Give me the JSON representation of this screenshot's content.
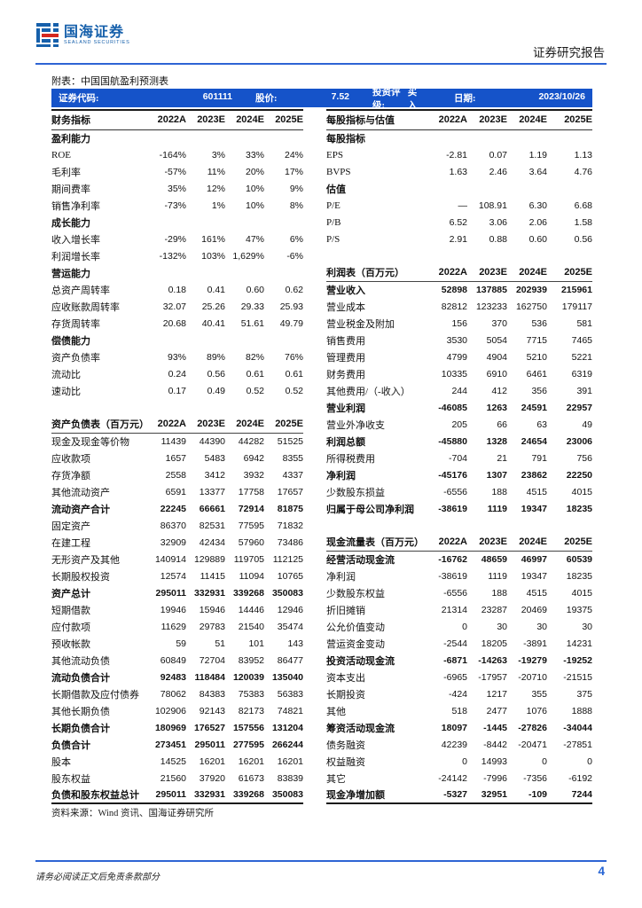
{
  "colors": {
    "info_bar_blue": "#1553c9",
    "rule_blue": "#2e64d4",
    "logo_blue": "#1660ab",
    "logo_red": "#d5281e",
    "page_number_blue": "#2563d4"
  },
  "header": {
    "brand_cn": "国海证券",
    "brand_en": "SEALAND SECURITIES",
    "report_type": "证券研究报告"
  },
  "caption": "附表：中国国航盈利预测表",
  "info_bar": {
    "code_label": "证券代码:",
    "code": "601111",
    "price_label": "股价:",
    "price": "7.52",
    "rating_label": "投资评级:",
    "rating": "买入",
    "date_label": "日期:",
    "date": "2023/10/26"
  },
  "left_table": {
    "header": [
      "财务指标",
      "2022A",
      "2023E",
      "2024E",
      "2025E"
    ],
    "rows": [
      {
        "label": "盈利能力",
        "style": "section"
      },
      {
        "label": "ROE",
        "values": [
          "-164%",
          "3%",
          "33%",
          "24%"
        ]
      },
      {
        "label": "毛利率",
        "values": [
          "-57%",
          "11%",
          "20%",
          "17%"
        ]
      },
      {
        "label": "期间费率",
        "values": [
          "35%",
          "12%",
          "10%",
          "9%"
        ]
      },
      {
        "label": "销售净利率",
        "values": [
          "-73%",
          "1%",
          "10%",
          "8%"
        ]
      },
      {
        "label": "成长能力",
        "style": "section"
      },
      {
        "label": "收入增长率",
        "values": [
          "-29%",
          "161%",
          "47%",
          "6%"
        ]
      },
      {
        "label": "利润增长率",
        "values": [
          "-132%",
          "103%",
          "1,629%",
          "-6%"
        ]
      },
      {
        "label": "营运能力",
        "style": "section"
      },
      {
        "label": "总资产周转率",
        "values": [
          "0.18",
          "0.41",
          "0.60",
          "0.62"
        ]
      },
      {
        "label": "应收账款周转率",
        "values": [
          "32.07",
          "25.26",
          "29.33",
          "25.93"
        ]
      },
      {
        "label": "存货周转率",
        "values": [
          "20.68",
          "40.41",
          "51.61",
          "49.79"
        ]
      },
      {
        "label": "偿债能力",
        "style": "section"
      },
      {
        "label": "资产负债率",
        "values": [
          "93%",
          "89%",
          "82%",
          "76%"
        ]
      },
      {
        "label": "流动比",
        "values": [
          "0.24",
          "0.56",
          "0.61",
          "0.61"
        ]
      },
      {
        "label": "速动比",
        "values": [
          "0.17",
          "0.49",
          "0.52",
          "0.52"
        ]
      },
      {
        "style": "blank"
      },
      {
        "label": "资产负债表（百万元）",
        "values": [
          "2022A",
          "2023E",
          "2024E",
          "2025E"
        ],
        "style": "header"
      },
      {
        "label": "现金及现金等价物",
        "values": [
          "11439",
          "44390",
          "44282",
          "51525"
        ]
      },
      {
        "label": "应收款项",
        "values": [
          "1657",
          "5483",
          "6942",
          "8355"
        ]
      },
      {
        "label": "存货净额",
        "values": [
          "2558",
          "3412",
          "3932",
          "4337"
        ]
      },
      {
        "label": "其他流动资产",
        "values": [
          "6591",
          "13377",
          "17758",
          "17657"
        ]
      },
      {
        "label": "流动资产合计",
        "values": [
          "22245",
          "66661",
          "72914",
          "81875"
        ],
        "style": "total"
      },
      {
        "label": "固定资产",
        "values": [
          "86370",
          "82531",
          "77595",
          "71832"
        ]
      },
      {
        "label": "在建工程",
        "values": [
          "32909",
          "42434",
          "57960",
          "73486"
        ]
      },
      {
        "label": "无形资产及其他",
        "values": [
          "140914",
          "129889",
          "119705",
          "112125"
        ]
      },
      {
        "label": "长期股权投资",
        "values": [
          "12574",
          "11415",
          "11094",
          "10765"
        ]
      },
      {
        "label": "资产总计",
        "values": [
          "295011",
          "332931",
          "339268",
          "350083"
        ],
        "style": "total"
      },
      {
        "label": "短期借款",
        "values": [
          "19946",
          "15946",
          "14446",
          "12946"
        ]
      },
      {
        "label": "应付款项",
        "values": [
          "11629",
          "29783",
          "21540",
          "35474"
        ]
      },
      {
        "label": "预收帐款",
        "values": [
          "59",
          "51",
          "101",
          "143"
        ]
      },
      {
        "label": "其他流动负债",
        "values": [
          "60849",
          "72704",
          "83952",
          "86477"
        ]
      },
      {
        "label": "流动负债合计",
        "values": [
          "92483",
          "118484",
          "120039",
          "135040"
        ],
        "style": "total"
      },
      {
        "label": "长期借款及应付债券",
        "values": [
          "78062",
          "84383",
          "75383",
          "56383"
        ]
      },
      {
        "label": "其他长期负债",
        "values": [
          "102906",
          "92143",
          "82173",
          "74821"
        ]
      },
      {
        "label": "长期负债合计",
        "values": [
          "180969",
          "176527",
          "157556",
          "131204"
        ],
        "style": "total"
      },
      {
        "label": "负债合计",
        "values": [
          "273451",
          "295011",
          "277595",
          "266244"
        ],
        "style": "total"
      },
      {
        "label": "股本",
        "values": [
          "14525",
          "16201",
          "16201",
          "16201"
        ]
      },
      {
        "label": "股东权益",
        "values": [
          "21560",
          "37920",
          "61673",
          "83839"
        ]
      },
      {
        "label": "负债和股东权益总计",
        "values": [
          "295011",
          "332931",
          "339268",
          "350083"
        ],
        "style": "total"
      }
    ]
  },
  "right_table": {
    "header": [
      "每股指标与估值",
      "2022A",
      "2023E",
      "2024E",
      "2025E"
    ],
    "rows": [
      {
        "label": "每股指标",
        "style": "section"
      },
      {
        "label": "EPS",
        "values": [
          "-2.81",
          "0.07",
          "1.19",
          "1.13"
        ]
      },
      {
        "label": "BVPS",
        "values": [
          "1.63",
          "2.46",
          "3.64",
          "4.76"
        ]
      },
      {
        "label": "估值",
        "style": "section"
      },
      {
        "label": "P/E",
        "values": [
          "—",
          "108.91",
          "6.30",
          "6.68"
        ]
      },
      {
        "label": "P/B",
        "values": [
          "6.52",
          "3.06",
          "2.06",
          "1.58"
        ]
      },
      {
        "label": "P/S",
        "values": [
          "2.91",
          "0.88",
          "0.60",
          "0.56"
        ]
      },
      {
        "style": "blank"
      },
      {
        "label": "利润表（百万元）",
        "values": [
          "2022A",
          "2023E",
          "2024E",
          "2025E"
        ],
        "style": "header"
      },
      {
        "label": "营业收入",
        "values": [
          "52898",
          "137885",
          "202939",
          "215961"
        ],
        "style": "total"
      },
      {
        "label": "营业成本",
        "values": [
          "82812",
          "123233",
          "162750",
          "179117"
        ]
      },
      {
        "label": "营业税金及附加",
        "values": [
          "156",
          "370",
          "536",
          "581"
        ]
      },
      {
        "label": "销售费用",
        "values": [
          "3530",
          "5054",
          "7715",
          "7465"
        ]
      },
      {
        "label": "管理费用",
        "values": [
          "4799",
          "4904",
          "5210",
          "5221"
        ]
      },
      {
        "label": "财务费用",
        "values": [
          "10335",
          "6910",
          "6461",
          "6319"
        ]
      },
      {
        "label": "其他费用/（-收入）",
        "values": [
          "244",
          "412",
          "356",
          "391"
        ]
      },
      {
        "label": "营业利润",
        "values": [
          "-46085",
          "1263",
          "24591",
          "22957"
        ],
        "style": "total"
      },
      {
        "label": "营业外净收支",
        "values": [
          "205",
          "66",
          "63",
          "49"
        ]
      },
      {
        "label": "利润总额",
        "values": [
          "-45880",
          "1328",
          "24654",
          "23006"
        ],
        "style": "total"
      },
      {
        "label": "所得税费用",
        "values": [
          "-704",
          "21",
          "791",
          "756"
        ]
      },
      {
        "label": "净利润",
        "values": [
          "-45176",
          "1307",
          "23862",
          "22250"
        ],
        "style": "total"
      },
      {
        "label": "少数股东损益",
        "values": [
          "-6556",
          "188",
          "4515",
          "4015"
        ]
      },
      {
        "label": "归属于母公司净利润",
        "values": [
          "-38619",
          "1119",
          "19347",
          "18235"
        ],
        "style": "total"
      },
      {
        "style": "blank"
      },
      {
        "label": "现金流量表（百万元）",
        "values": [
          "2022A",
          "2023E",
          "2024E",
          "2025E"
        ],
        "style": "header"
      },
      {
        "label": "经营活动现金流",
        "values": [
          "-16762",
          "48659",
          "46997",
          "60539"
        ],
        "style": "total"
      },
      {
        "label": "净利润",
        "values": [
          "-38619",
          "1119",
          "19347",
          "18235"
        ]
      },
      {
        "label": "少数股东权益",
        "values": [
          "-6556",
          "188",
          "4515",
          "4015"
        ]
      },
      {
        "label": "折旧摊销",
        "values": [
          "21314",
          "23287",
          "20469",
          "19375"
        ]
      },
      {
        "label": "公允价值变动",
        "values": [
          "0",
          "30",
          "30",
          "30"
        ]
      },
      {
        "label": "营运资金变动",
        "values": [
          "-2544",
          "18205",
          "-3891",
          "14231"
        ]
      },
      {
        "label": "投资活动现金流",
        "values": [
          "-6871",
          "-14263",
          "-19279",
          "-19252"
        ],
        "style": "total"
      },
      {
        "label": "资本支出",
        "values": [
          "-6965",
          "-17957",
          "-20710",
          "-21515"
        ]
      },
      {
        "label": "长期投资",
        "values": [
          "-424",
          "1217",
          "355",
          "375"
        ]
      },
      {
        "label": "其他",
        "values": [
          "518",
          "2477",
          "1076",
          "1888"
        ]
      },
      {
        "label": "筹资活动现金流",
        "values": [
          "18097",
          "-1445",
          "-27826",
          "-34044"
        ],
        "style": "total"
      },
      {
        "label": "债务融资",
        "values": [
          "42239",
          "-8442",
          "-20471",
          "-27851"
        ]
      },
      {
        "label": "权益融资",
        "values": [
          "0",
          "14993",
          "0",
          "0"
        ]
      },
      {
        "label": "其它",
        "values": [
          "-24142",
          "-7996",
          "-7356",
          "-6192"
        ]
      },
      {
        "label": "现金净增加额",
        "values": [
          "-5327",
          "32951",
          "-109",
          "7244"
        ],
        "style": "total"
      }
    ]
  },
  "source_note": "资料来源：Wind 资讯、国海证券研究所",
  "footer": {
    "disclaimer": "请务必阅读正文后免责条款部分",
    "page_number": "4"
  }
}
